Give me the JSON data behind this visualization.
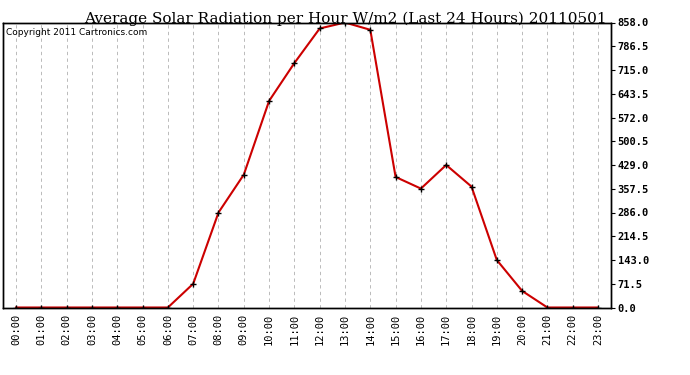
{
  "title": "Average Solar Radiation per Hour W/m2 (Last 24 Hours) 20110501",
  "copyright": "Copyright 2011 Cartronics.com",
  "x_labels": [
    "00:00",
    "01:00",
    "02:00",
    "03:00",
    "04:00",
    "05:00",
    "06:00",
    "07:00",
    "08:00",
    "09:00",
    "10:00",
    "11:00",
    "12:00",
    "13:00",
    "14:00",
    "15:00",
    "16:00",
    "17:00",
    "18:00",
    "19:00",
    "20:00",
    "21:00",
    "22:00",
    "23:00"
  ],
  "y_values": [
    0,
    0,
    0,
    0,
    0,
    0,
    0,
    71.5,
    286.0,
    400.0,
    622.0,
    736.0,
    840.0,
    858.0,
    836.0,
    393.0,
    358.0,
    429.0,
    364.0,
    143.0,
    50.0,
    0,
    0,
    0
  ],
  "line_color": "#cc0000",
  "marker": "+",
  "marker_color": "#000000",
  "marker_size": 5,
  "line_width": 1.5,
  "background_color": "#ffffff",
  "plot_bg_color": "#ffffff",
  "outer_bg_color": "#ffffff",
  "grid_color": "#b0b0b0",
  "grid_linestyle": "--",
  "ylim": [
    0,
    858.0
  ],
  "yticks": [
    0.0,
    71.5,
    143.0,
    214.5,
    286.0,
    357.5,
    429.0,
    500.5,
    572.0,
    643.5,
    715.0,
    786.5,
    858.0
  ],
  "title_fontsize": 11,
  "copyright_fontsize": 6.5,
  "tick_fontsize": 7.5,
  "tick_font": "monospace"
}
